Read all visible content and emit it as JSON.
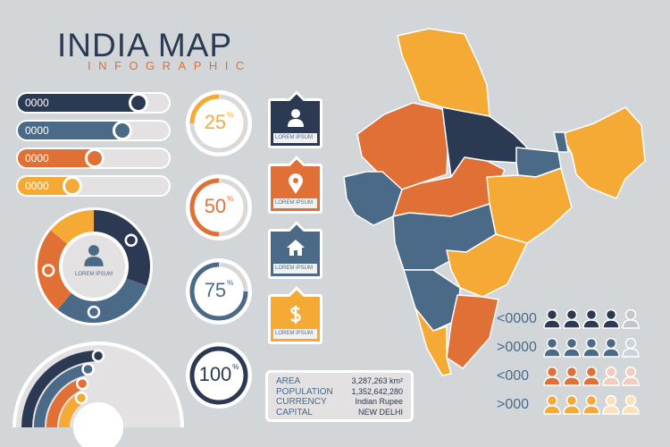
{
  "header": {
    "title": "INDIA MAP",
    "subtitle": "INFOGRAPHIC"
  },
  "colors": {
    "navy": "#2b3a52",
    "slate": "#4a6a88",
    "orange": "#e07035",
    "yellow": "#f5aa35",
    "background": "#d3d6d9"
  },
  "bars": [
    {
      "label": "0000",
      "progress": 0.8,
      "color": "#2b3a52"
    },
    {
      "label": "0000",
      "progress": 0.69,
      "color": "#4a6a88"
    },
    {
      "label": "0000",
      "progress": 0.51,
      "color": "#e07035"
    },
    {
      "label": "0000",
      "progress": 0.36,
      "color": "#f5aa35"
    }
  ],
  "donut": {
    "label": "LOREM IPSUM",
    "icon": "person-icon"
  },
  "rings": [
    {
      "value": "25",
      "unit": "%",
      "progress": 0.25,
      "color": "#f5aa35"
    },
    {
      "value": "50",
      "unit": "%",
      "progress": 0.5,
      "color": "#e07035"
    },
    {
      "value": "75",
      "unit": "%",
      "progress": 0.75,
      "color": "#4a6a88"
    },
    {
      "value": "100",
      "unit": "%",
      "progress": 1.0,
      "color": "#2b3a52"
    }
  ],
  "cards": [
    {
      "label": "LOREM IPSUM",
      "icon": "person-icon",
      "color": "#2b3a52"
    },
    {
      "label": "LOREM IPSUM",
      "icon": "location-pin-icon",
      "color": "#e07035"
    },
    {
      "label": "LOREM IPSUM",
      "icon": "home-icon",
      "color": "#4a6a88"
    },
    {
      "label": "LOREM IPSUM",
      "icon": "dollar-icon",
      "color": "#f5aa35"
    }
  ],
  "info": [
    {
      "key": "AREA",
      "value": "3,287,263 km²"
    },
    {
      "key": "POPULATION",
      "value": "1,352,642,280"
    },
    {
      "key": "CURRENCY",
      "value": "Indian Rupee"
    },
    {
      "key": "CAPITAL",
      "value": "NEW DELHI"
    }
  ],
  "legend": [
    {
      "label": "<0000",
      "filled": 4,
      "total": 5,
      "color": "#2b3a52",
      "light": "#c2c5ca"
    },
    {
      "label": ">0000",
      "filled": 4,
      "total": 5,
      "color": "#4a6a88",
      "light": "#c9d3dc"
    },
    {
      "label": "<000",
      "filled": 3,
      "total": 5,
      "color": "#e07035",
      "light": "#f2cdbd"
    },
    {
      "label": ">000",
      "filled": 3,
      "total": 5,
      "color": "#f5aa35",
      "light": "#fbe0b8"
    }
  ]
}
